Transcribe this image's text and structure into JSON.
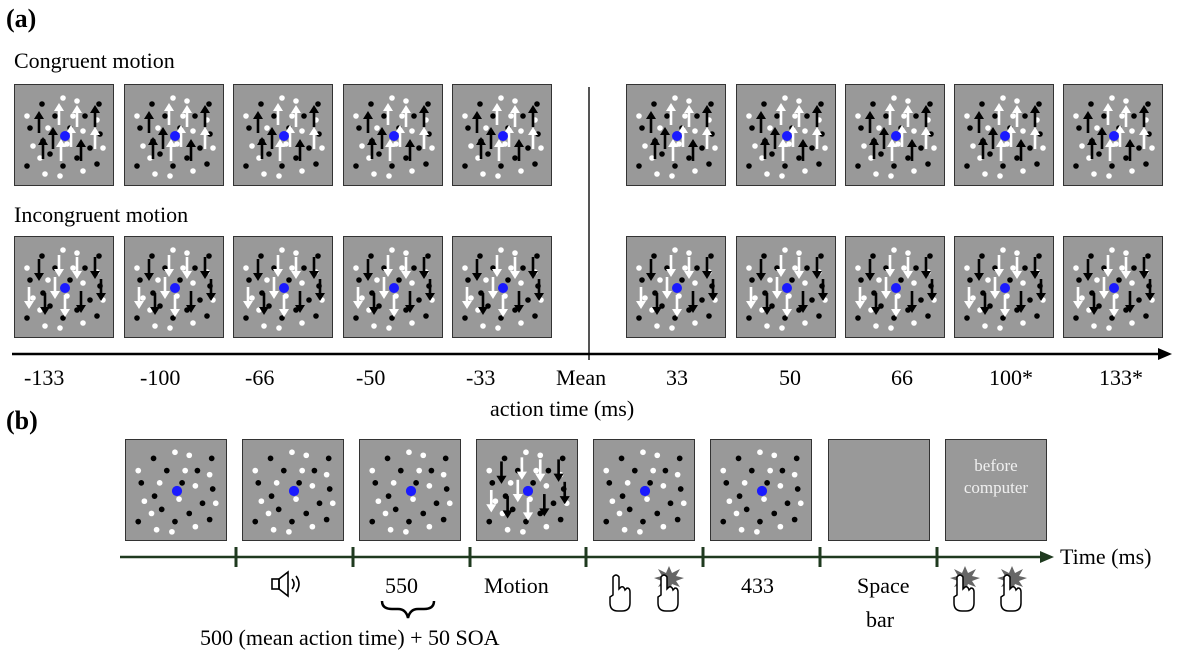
{
  "panel_a": {
    "label": "(a)",
    "congruent_label": "Congruent motion",
    "incongruent_label": "Incongruent motion",
    "ticks": [
      "-133",
      "-100",
      "-66",
      "-50",
      "-33",
      "Mean",
      "33",
      "50",
      "66",
      "100*",
      "133*"
    ],
    "axis_label": "action time (ms)"
  },
  "panel_b": {
    "label": "(b)",
    "screen_text": [
      "before",
      "computer"
    ],
    "timeline_labels": {
      "isi": "550",
      "motion": "Motion",
      "delay": "433",
      "response": "Space",
      "response2": "bar"
    },
    "brace_note": "500 (mean action time) + 50 SOA",
    "axis_label": "Time (ms)"
  },
  "colors": {
    "panel_bg": "#999999",
    "fixation": "#1a1aff",
    "black_dot": "#000000",
    "white_dot": "#ffffff",
    "axis": "#000000",
    "timeline": "#1f3a1f"
  },
  "icons": [
    "speaker-icon",
    "finger-tap-icon",
    "finger-press-icon"
  ]
}
